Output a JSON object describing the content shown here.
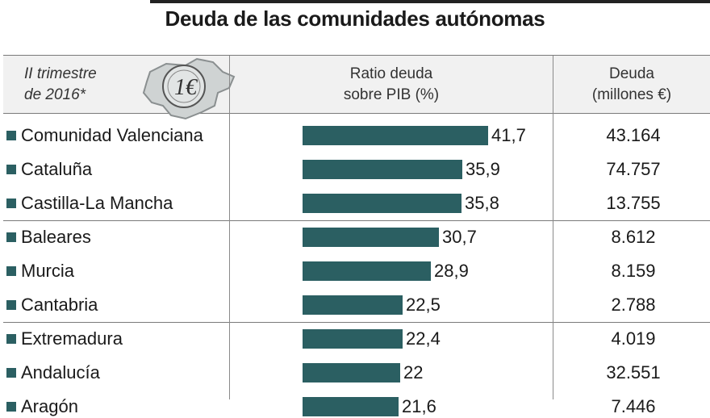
{
  "chart_data": {
    "type": "table",
    "title": "Deuda de las comunidades autónomas",
    "period": [
      "II trimestre",
      "de 2016*"
    ],
    "columns": [
      [
        "Ratio deuda",
        "sobre PIB (%)"
      ],
      [
        "Deuda",
        "(millones €)"
      ]
    ],
    "bar_max": 41.7,
    "rows": [
      {
        "name": "Comunidad Valenciana",
        "ratio": 41.7,
        "ratio_label": "41,7",
        "deuda": "43.164"
      },
      {
        "name": "Cataluña",
        "ratio": 35.9,
        "ratio_label": "35,9",
        "deuda": "74.757"
      },
      {
        "name": "Castilla-La Mancha",
        "ratio": 35.8,
        "ratio_label": "35,8",
        "deuda": "13.755"
      },
      {
        "name": "Baleares",
        "ratio": 30.7,
        "ratio_label": "30,7",
        "deuda": "8.612"
      },
      {
        "name": "Murcia",
        "ratio": 28.9,
        "ratio_label": "28,9",
        "deuda": "8.159"
      },
      {
        "name": "Cantabria",
        "ratio": 22.5,
        "ratio_label": "22,5",
        "deuda": "2.788"
      },
      {
        "name": "Extremadura",
        "ratio": 22.4,
        "ratio_label": "22,4",
        "deuda": "4.019"
      },
      {
        "name": "Andalucía",
        "ratio": 22,
        "ratio_label": "22",
        "deuda": "32.551"
      },
      {
        "name": "Aragón",
        "ratio": 21.6,
        "ratio_label": "21,6",
        "deuda": "7.446"
      }
    ]
  },
  "icon": {
    "name": "coin-map-icon",
    "coin_text": "1€"
  },
  "colors": {
    "bar": "#2b5f62",
    "header_bg": "#f1f1f1",
    "rule": "#222222"
  }
}
